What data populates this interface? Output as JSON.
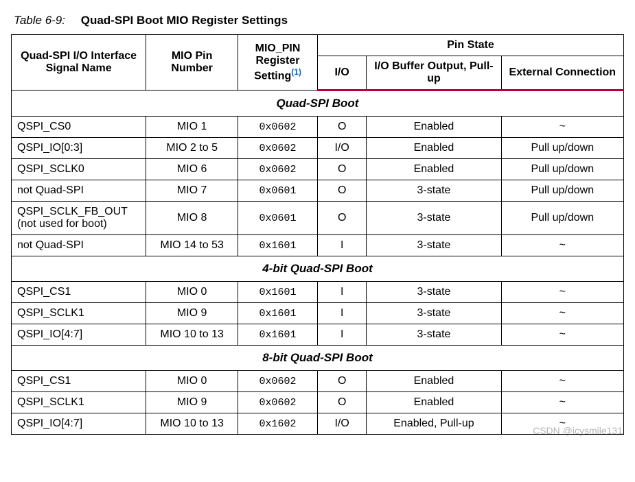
{
  "caption": {
    "number": "Table 6-9:",
    "title": "Quad-SPI Boot MIO Register Settings"
  },
  "headers": {
    "col1": "Quad-SPI I/O Interface Signal Name",
    "col2": "MIO Pin Number",
    "col3_a": "MIO_PIN Register Setting",
    "col3_note": "(1)",
    "pin_state": "Pin State",
    "col4": "I/O",
    "col5": "I/O Buffer Output, Pull-up",
    "col6": "External Connection"
  },
  "sections": {
    "s1": "Quad-SPI Boot",
    "s2": "4-bit Quad-SPI Boot",
    "s3": "8-bit Quad-SPI Boot"
  },
  "rows": {
    "r1": {
      "name": "QSPI_CS0",
      "pin": "MIO 1",
      "reg": "0x0602",
      "io": "O",
      "buf": "Enabled",
      "ext": "~"
    },
    "r2": {
      "name": "QSPI_IO[0:3]",
      "pin": "MIO 2 to 5",
      "reg": "0x0602",
      "io": "I/O",
      "buf": "Enabled",
      "ext": "Pull up/down"
    },
    "r3": {
      "name": "QSPI_SCLK0",
      "pin": "MIO 6",
      "reg": "0x0602",
      "io": "O",
      "buf": "Enabled",
      "ext": "Pull up/down"
    },
    "r4": {
      "name": "not Quad-SPI",
      "pin": "MIO 7",
      "reg": "0x0601",
      "io": "O",
      "buf": "3-state",
      "ext": "Pull up/down"
    },
    "r5": {
      "name": "QSPI_SCLK_FB_OUT (not used for boot)",
      "pin": "MIO 8",
      "reg": "0x0601",
      "io": "O",
      "buf": "3-state",
      "ext": "Pull up/down"
    },
    "r6": {
      "name": "not Quad-SPI",
      "pin": "MIO 14 to 53",
      "reg": "0x1601",
      "io": "I",
      "buf": "3-state",
      "ext": "~"
    },
    "r7": {
      "name": "QSPI_CS1",
      "pin": "MIO 0",
      "reg": "0x1601",
      "io": "I",
      "buf": "3-state",
      "ext": "~"
    },
    "r8": {
      "name": "QSPI_SCLK1",
      "pin": "MIO 9",
      "reg": "0x1601",
      "io": "I",
      "buf": "3-state",
      "ext": "~"
    },
    "r9": {
      "name": "QSPI_IO[4:7]",
      "pin": "MIO 10 to 13",
      "reg": "0x1601",
      "io": "I",
      "buf": "3-state",
      "ext": "~"
    },
    "r10": {
      "name": "QSPI_CS1",
      "pin": "MIO 0",
      "reg": "0x0602",
      "io": "O",
      "buf": "Enabled",
      "ext": "~"
    },
    "r11": {
      "name": "QSPI_SCLK1",
      "pin": "MIO 9",
      "reg": "0x0602",
      "io": "O",
      "buf": "Enabled",
      "ext": "~"
    },
    "r12": {
      "name": "QSPI_IO[4:7]",
      "pin": "MIO 10 to 13",
      "reg": "0x1602",
      "io": "I/O",
      "buf": "Enabled, Pull-up",
      "ext": "~"
    }
  },
  "watermark": "CSDN @icysmile131"
}
